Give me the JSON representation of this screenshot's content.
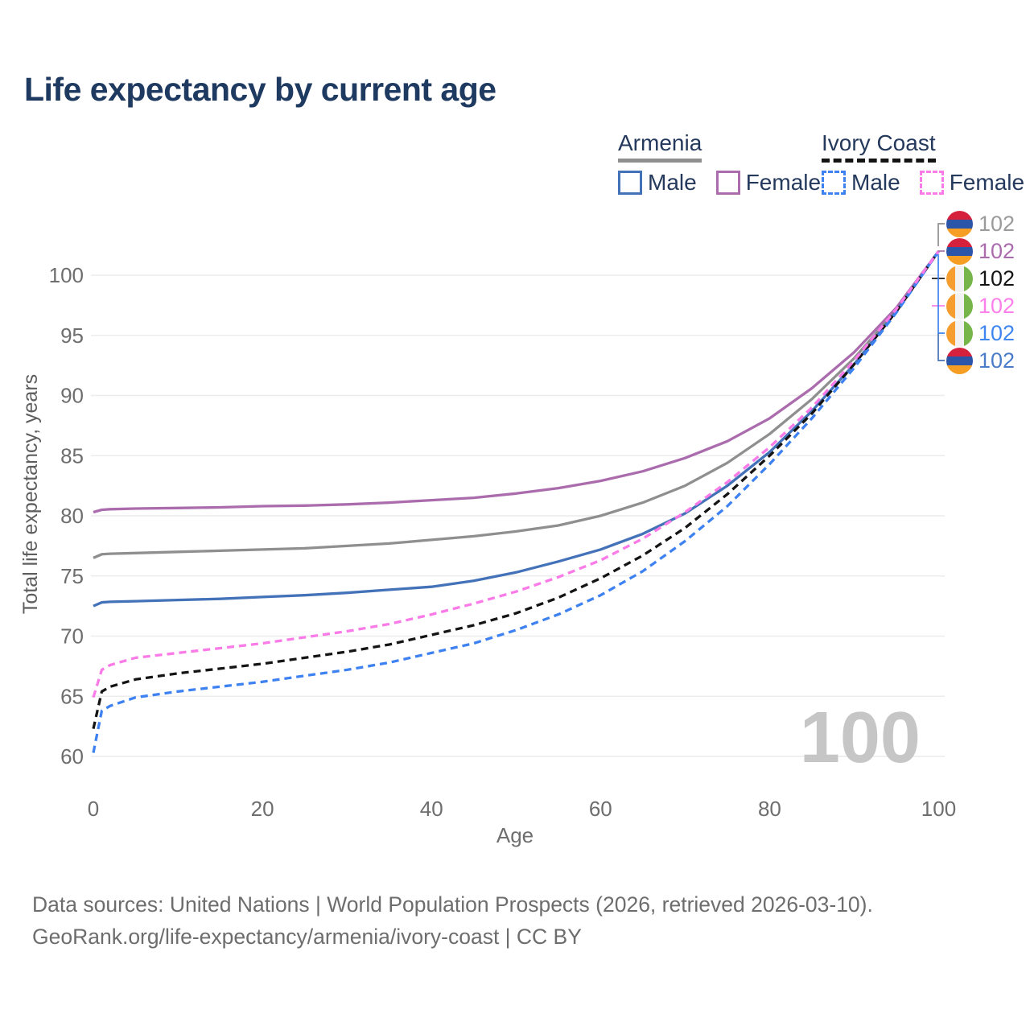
{
  "title": "Life expectancy by current age",
  "legend": {
    "groups": [
      {
        "id": "armenia",
        "label": "Armenia",
        "style": "solid",
        "items": [
          {
            "id": "armenia-male",
            "label": "Male"
          },
          {
            "id": "armenia-female",
            "label": "Female"
          }
        ]
      },
      {
        "id": "ivory-coast",
        "label": "Ivory Coast",
        "style": "dashed",
        "items": [
          {
            "id": "ivory-coast-male",
            "label": "Male"
          },
          {
            "id": "ivory-coast-female",
            "label": "Female"
          }
        ]
      }
    ]
  },
  "chart_data": {
    "type": "line",
    "title": "Life expectancy by current age",
    "xlabel": "Age",
    "ylabel": "Total life expectancy, years",
    "xticks": [
      0,
      20,
      40,
      60,
      80,
      100
    ],
    "yticks": [
      60,
      65,
      70,
      75,
      80,
      85,
      90,
      95,
      100
    ],
    "xlim": [
      0,
      100
    ],
    "ylim": [
      58,
      103
    ],
    "grid": "horizontal",
    "legend_position": "top-right",
    "watermark": "100",
    "colors": {
      "background": "#ffffff",
      "grid": "#ececec",
      "tick_text": "#6e6e6e",
      "title_text": "#1f3a60",
      "legend_text": "#24395c",
      "watermark_text": "#c6c6c6",
      "footer_text": "#6d6d6d"
    },
    "series": [
      {
        "id": "armenia-both",
        "name": "Armenia (both sexes)",
        "color": "#8f8f8f",
        "dashed": false,
        "points": [
          [
            0,
            76.5
          ],
          [
            1,
            76.8
          ],
          [
            2,
            76.85
          ],
          [
            5,
            76.9
          ],
          [
            10,
            77.0
          ],
          [
            15,
            77.1
          ],
          [
            20,
            77.2
          ],
          [
            25,
            77.3
          ],
          [
            30,
            77.5
          ],
          [
            35,
            77.7
          ],
          [
            40,
            78.0
          ],
          [
            45,
            78.3
          ],
          [
            50,
            78.7
          ],
          [
            55,
            79.2
          ],
          [
            60,
            80.0
          ],
          [
            65,
            81.1
          ],
          [
            70,
            82.5
          ],
          [
            75,
            84.4
          ],
          [
            80,
            86.8
          ],
          [
            85,
            89.7
          ],
          [
            90,
            93.1
          ],
          [
            95,
            97.1
          ],
          [
            100,
            102
          ]
        ]
      },
      {
        "id": "armenia-female",
        "name": "Armenia Female",
        "color": "#ab6cae",
        "dashed": false,
        "points": [
          [
            0,
            80.3
          ],
          [
            1,
            80.5
          ],
          [
            2,
            80.55
          ],
          [
            5,
            80.6
          ],
          [
            10,
            80.65
          ],
          [
            15,
            80.7
          ],
          [
            20,
            80.8
          ],
          [
            25,
            80.85
          ],
          [
            30,
            80.95
          ],
          [
            35,
            81.1
          ],
          [
            40,
            81.3
          ],
          [
            45,
            81.5
          ],
          [
            50,
            81.85
          ],
          [
            55,
            82.3
          ],
          [
            60,
            82.9
          ],
          [
            65,
            83.7
          ],
          [
            70,
            84.8
          ],
          [
            75,
            86.2
          ],
          [
            80,
            88.1
          ],
          [
            85,
            90.6
          ],
          [
            90,
            93.6
          ],
          [
            95,
            97.3
          ],
          [
            100,
            102
          ]
        ]
      },
      {
        "id": "armenia-male",
        "name": "Armenia Male",
        "color": "#4472b8",
        "dashed": false,
        "points": [
          [
            0,
            72.5
          ],
          [
            1,
            72.8
          ],
          [
            2,
            72.85
          ],
          [
            5,
            72.9
          ],
          [
            10,
            73.0
          ],
          [
            15,
            73.1
          ],
          [
            20,
            73.25
          ],
          [
            25,
            73.4
          ],
          [
            30,
            73.6
          ],
          [
            35,
            73.85
          ],
          [
            40,
            74.1
          ],
          [
            45,
            74.6
          ],
          [
            50,
            75.3
          ],
          [
            55,
            76.2
          ],
          [
            60,
            77.2
          ],
          [
            65,
            78.5
          ],
          [
            70,
            80.2
          ],
          [
            75,
            82.5
          ],
          [
            80,
            85.3
          ],
          [
            85,
            88.7
          ],
          [
            90,
            92.6
          ],
          [
            95,
            97.0
          ],
          [
            100,
            102
          ]
        ]
      },
      {
        "id": "ivory-coast-both",
        "name": "Ivory Coast (both sexes)",
        "color": "#141414",
        "dashed": true,
        "points": [
          [
            0,
            62.3
          ],
          [
            1,
            65.4
          ],
          [
            2,
            65.8
          ],
          [
            5,
            66.4
          ],
          [
            10,
            66.9
          ],
          [
            15,
            67.3
          ],
          [
            20,
            67.7
          ],
          [
            25,
            68.2
          ],
          [
            30,
            68.7
          ],
          [
            35,
            69.3
          ],
          [
            40,
            70.1
          ],
          [
            45,
            70.9
          ],
          [
            50,
            71.9
          ],
          [
            55,
            73.2
          ],
          [
            60,
            74.8
          ],
          [
            65,
            76.7
          ],
          [
            70,
            79.0
          ],
          [
            75,
            81.8
          ],
          [
            80,
            85.0
          ],
          [
            85,
            88.5
          ],
          [
            90,
            92.6
          ],
          [
            95,
            97.0
          ],
          [
            100,
            102
          ]
        ]
      },
      {
        "id": "ivory-coast-male",
        "name": "Ivory Coast Male",
        "color": "#3e82f2",
        "dashed": true,
        "points": [
          [
            0,
            60.3
          ],
          [
            1,
            63.8
          ],
          [
            2,
            64.2
          ],
          [
            5,
            64.9
          ],
          [
            10,
            65.4
          ],
          [
            15,
            65.8
          ],
          [
            20,
            66.2
          ],
          [
            25,
            66.7
          ],
          [
            30,
            67.2
          ],
          [
            35,
            67.8
          ],
          [
            40,
            68.6
          ],
          [
            45,
            69.4
          ],
          [
            50,
            70.5
          ],
          [
            55,
            71.8
          ],
          [
            60,
            73.4
          ],
          [
            65,
            75.4
          ],
          [
            70,
            77.9
          ],
          [
            75,
            80.8
          ],
          [
            80,
            84.3
          ],
          [
            85,
            88.1
          ],
          [
            90,
            92.3
          ],
          [
            95,
            96.9
          ],
          [
            100,
            102
          ]
        ]
      },
      {
        "id": "ivory-coast-female",
        "name": "Ivory Coast Female",
        "color": "#fa7ae8",
        "dashed": true,
        "points": [
          [
            0,
            64.9
          ],
          [
            1,
            67.2
          ],
          [
            2,
            67.6
          ],
          [
            5,
            68.2
          ],
          [
            10,
            68.6
          ],
          [
            15,
            69.0
          ],
          [
            20,
            69.4
          ],
          [
            25,
            69.9
          ],
          [
            30,
            70.4
          ],
          [
            35,
            71.0
          ],
          [
            40,
            71.8
          ],
          [
            45,
            72.7
          ],
          [
            50,
            73.7
          ],
          [
            55,
            74.9
          ],
          [
            60,
            76.3
          ],
          [
            65,
            78.1
          ],
          [
            70,
            80.3
          ],
          [
            75,
            82.8
          ],
          [
            80,
            85.7
          ],
          [
            85,
            89.0
          ],
          [
            90,
            92.9
          ],
          [
            95,
            97.2
          ],
          [
            100,
            102
          ]
        ]
      }
    ],
    "annotations": [
      {
        "flag": "armenia",
        "series": "armenia-both",
        "value": "102",
        "color": "#9b9b9b"
      },
      {
        "flag": "armenia",
        "series": "armenia-female",
        "value": "102",
        "color": "#ab6cae"
      },
      {
        "flag": "ivory-coast",
        "series": "ivory-coast-both",
        "value": "102",
        "color": "#141414"
      },
      {
        "flag": "ivory-coast",
        "series": "ivory-coast-female",
        "value": "102",
        "color": "#fb80ec"
      },
      {
        "flag": "ivory-coast",
        "series": "ivory-coast-male",
        "value": "102",
        "color": "#3f86f0"
      },
      {
        "flag": "armenia",
        "series": "armenia-male",
        "value": "102",
        "color": "#4b7cc9"
      }
    ]
  },
  "footer": {
    "line1": "Data sources: United Nations | World Population Prospects (2026, retrieved 2026-03-10).",
    "line2": "GeoRank.org/life-expectancy/armenia/ivory-coast | CC BY"
  }
}
